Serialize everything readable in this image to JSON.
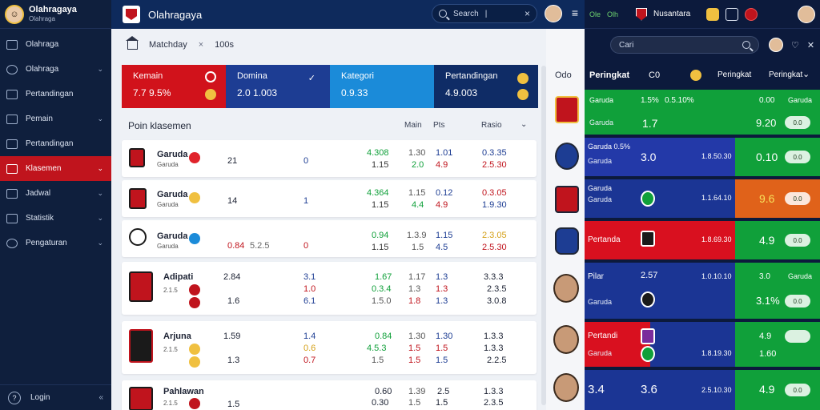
{
  "sidebar": {
    "brand_title": "Olahragaya",
    "brand_sub": "Olahraga",
    "items": [
      {
        "label": "Olahraga",
        "chevron": false,
        "active": false
      },
      {
        "label": "Olahraga",
        "chevron": true,
        "active": false
      },
      {
        "label": "Pertandingan",
        "chevron": false,
        "active": false
      },
      {
        "label": "Pemain",
        "chevron": true,
        "active": false
      },
      {
        "label": "Pertandingan",
        "chevron": false,
        "active": false
      },
      {
        "label": "Klasemen",
        "chevron": true,
        "active": true
      },
      {
        "label": "Jadwal",
        "chevron": true,
        "active": false
      },
      {
        "label": "Statistik",
        "chevron": true,
        "active": false
      },
      {
        "label": "Pengaturan",
        "chevron": true,
        "active": false
      }
    ],
    "footer_label": "Login",
    "footer_collapse": "«"
  },
  "header": {
    "title": "Olahragaya",
    "search_placeholder": "Search",
    "search_sep": "|",
    "search_close": "×",
    "menu_glyph": "≡"
  },
  "breadcrumb": {
    "label": "Matchday",
    "close": "×",
    "value": "100s"
  },
  "cards": [
    {
      "label": "Kemain",
      "value": "7.7 9.5%",
      "color": "#d1121b"
    },
    {
      "label": "Domina",
      "value": "2.0 1.003",
      "color": "#1d3d93",
      "check": "✓"
    },
    {
      "label": "Kategori",
      "value": "0.9.33",
      "color": "#1b8bd9"
    },
    {
      "label": "Pertandingan",
      "value": "4.9.003",
      "color": "#0f2c66"
    }
  ],
  "table": {
    "title": "Poin klasemen",
    "col1": "Main",
    "col2": "Pts",
    "col3": "Rasio",
    "chevron": "⌄",
    "rows": [
      {
        "name": "Garuda",
        "sub": "Garuda",
        "a": "21",
        "b": "0",
        "c": "4.308",
        "c2": "1.15",
        "d": "1.30",
        "d2": "2.0",
        "e": "1.01",
        "e2": "4.9",
        "f": "0.3.35",
        "f2": "2.5.30",
        "crest": "#c0141d",
        "dot": "#e0232b"
      },
      {
        "name": "Garuda",
        "sub": "Garuda",
        "a": "14",
        "b": "1",
        "c": "4.364",
        "c2": "1.15",
        "d": "1.15",
        "d2": "4.4",
        "e": "0.12",
        "e2": "4.9",
        "f": "0.3.05",
        "f2": "1.9.30",
        "crest": "#c0141d",
        "dot": "#f0c040"
      },
      {
        "name": "Garuda",
        "sub": "Garuda",
        "a": "0.84",
        "a2": "5.2.5",
        "b": "0",
        "c": "0.94",
        "c2": "1.15",
        "d": "1.3.9",
        "d2": "1.5",
        "e": "1.15",
        "e2": "4.5",
        "f": "2.3.05",
        "f2": "2.5.30",
        "crest": "#ffffff",
        "dot": "#1b8bd9"
      },
      {
        "name": "Adipati",
        "sub": "2.1.5",
        "a": "2.84",
        "a2": "1.6",
        "b": "3.1",
        "b2": "1.0",
        "b3": "6.1",
        "c": "1.67",
        "c2": "0.3.4",
        "c3": "1.5.0",
        "d": "1.17",
        "d2": "1.3",
        "d3": "1.8",
        "e": "1.3",
        "e2": "1.3",
        "e3": "1.3",
        "f": "3.3.3",
        "f2": "2.3.5",
        "f3": "3.0.8",
        "crest": "#c0141d",
        "dot": "#c0141d"
      },
      {
        "name": "Arjuna",
        "sub": "2.1.5",
        "a": "1.59",
        "a2": "1.3",
        "b": "1.4",
        "b2": "0.6",
        "b3": "0.7",
        "c": "0.84",
        "c2": "4.5.3",
        "c3": "1.5",
        "d": "1.30",
        "d2": "1.5",
        "d3": "1.5",
        "e": "1.30",
        "e2": "1.5",
        "e3": "1.5",
        "f": "1.3.3",
        "f2": "1.3.3",
        "f3": "2.2.5",
        "crest": "#c0141d",
        "dot": "#f0c040"
      },
      {
        "name": "Pahlawan",
        "sub": "2.1.5",
        "a": "1.5",
        "c": "0.60",
        "c2": "0.30",
        "d": "1.39",
        "d2": "1.5",
        "e": "2.5",
        "e2": "1.5",
        "f": "1.3.3",
        "f2": "2.3.5",
        "crest": "#c0141d",
        "dot": "#c0141d"
      }
    ]
  },
  "strip": {
    "label": "Odo"
  },
  "right_panel": {
    "tab_a": "Ole",
    "tab_b": "Olh",
    "brand": "Nusantara",
    "search_placeholder": "Cari",
    "hdr_title": "Peringkat",
    "hdr_code": "C0",
    "hdr_mid": "Peringkat",
    "hdr_right": "Peringkat",
    "hdr_chev": "⌄",
    "rows": [
      {
        "title": "Garuda",
        "sub": "Garuda",
        "v1": "1.5%",
        "v2": "0.5.10%",
        "big": "1.7",
        "r1": "0.00",
        "r2": "9.20",
        "btn": "0.0",
        "t2": "Garuda",
        "colors": [
          "#10a03a",
          "#10a03a",
          "#10a03a"
        ]
      },
      {
        "title": "Garuda 0.5%",
        "sub": "Garuda",
        "big": "3.0",
        "mid": "1.8.50.30",
        "r2": "0.10",
        "btn": "0.0",
        "colors": [
          "#2339a8",
          "#2339a8",
          "#10a03a"
        ]
      },
      {
        "title": "Garuda",
        "sub": "Garuda",
        "mid": "1.1.64.10",
        "r2": "9.6",
        "btn": "0.0",
        "colors": [
          "#1b3594",
          "#1b3594",
          "#e0621a"
        ]
      },
      {
        "title": "Pertanda",
        "sub": "",
        "mid": "1.8.69.30",
        "r2": "4.9",
        "btn": "0.0",
        "colors": [
          "#d9101f",
          "#d9101f",
          "#10a03a"
        ]
      },
      {
        "title": "Pilar",
        "sub": "Garuda",
        "big": "2.57",
        "mid": "1.0.10.10",
        "r1": "3.0",
        "r2": "3.1%",
        "btn": "0.0",
        "t2": "Garuda",
        "colors": [
          "#1b3594",
          "#1b3594",
          "#10a03a"
        ]
      },
      {
        "title": "Pertandi",
        "sub": "Garuda",
        "mid": "1.8.19.30",
        "r1": "4.9",
        "r2": "1.60",
        "btn": "",
        "colors": [
          "#d9101f",
          "#1b3594",
          "#10a03a"
        ]
      },
      {
        "title": "3.4",
        "sub": "",
        "big": "3.6",
        "mid": "2.5.10.30",
        "r2": "4.9",
        "btn": "0.0",
        "colors": [
          "#1b3594",
          "#1b3594",
          "#10a03a"
        ]
      }
    ]
  }
}
